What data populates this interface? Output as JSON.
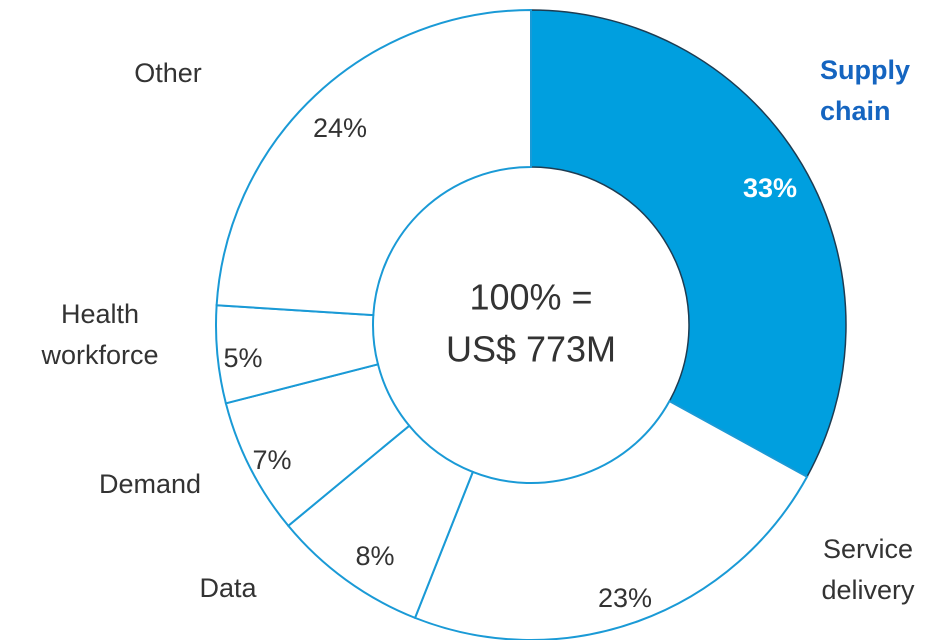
{
  "chart_data": {
    "type": "donut",
    "categories": [
      "Supply chain",
      "Service delivery",
      "Data",
      "Demand",
      "Health workforce",
      "Other"
    ],
    "values": [
      33,
      23,
      8,
      7,
      5,
      24
    ],
    "value_labels": [
      "33%",
      "23%",
      "8%",
      "7%",
      "5%",
      "24%"
    ],
    "colors": [
      "#009fdf",
      "#ffffff",
      "#ffffff",
      "#ffffff",
      "#ffffff",
      "#ffffff"
    ],
    "highlight": 0,
    "center_text": [
      "100% =",
      "US$ 773M"
    ]
  }
}
